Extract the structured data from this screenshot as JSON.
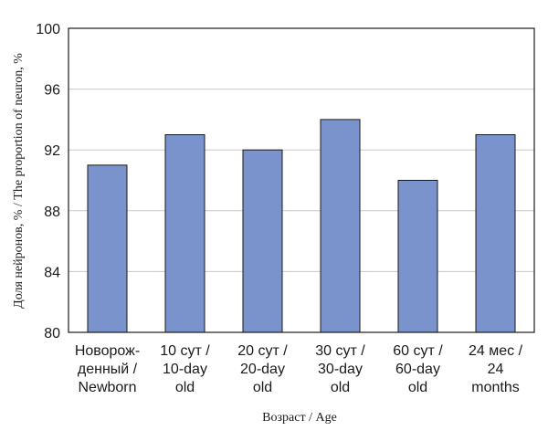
{
  "chart_data": {
    "type": "bar",
    "categories": [
      [
        "Новорож-",
        "денный /",
        "Newborn"
      ],
      [
        "10 сут /",
        "10-day",
        "old"
      ],
      [
        "20 сут /",
        "20-day",
        "old"
      ],
      [
        "30 сут /",
        "30-day",
        "old"
      ],
      [
        "60 сут /",
        "60-day",
        "old"
      ],
      [
        "24 мес /",
        "24",
        "months"
      ]
    ],
    "values": [
      91,
      93,
      92,
      94,
      90,
      93
    ],
    "ylim": [
      80,
      100
    ],
    "yticks": [
      80,
      84,
      88,
      92,
      96,
      100
    ],
    "ytick_labels": [
      "80",
      "84",
      "88",
      "92",
      "96",
      "100"
    ],
    "xlabel": "Возраст / Age",
    "ylabel": "Доля нейронов, % / The proportion of neuron, %",
    "grid": "horizontal",
    "bar_color": "#7b93cc",
    "bar_edge_color": "#1a1a1a",
    "legend": "none"
  }
}
